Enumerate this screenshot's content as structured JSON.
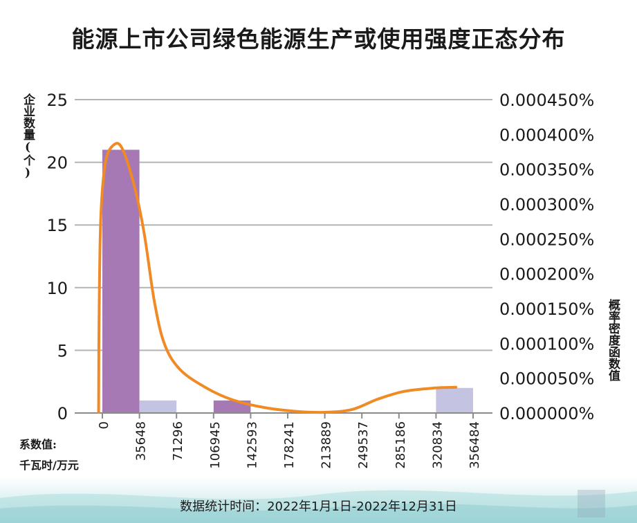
{
  "title": "能源上市公司绿色能源生产或使用强度正态分布",
  "y_left_label": "企业数量(个)",
  "y_right_label": "概率密度函数值",
  "x_unit_label_1": "系数值:",
  "x_unit_label_2": "千瓦时/万元",
  "footer_text": "数据统计时间：2022年1月1日-2022年12月31日",
  "colors": {
    "bar_main": "#a678b4",
    "bar_light": "#c5c3e2",
    "curve": "#f08a24",
    "grid": "#b3b3b3"
  },
  "chart_data": {
    "type": "bar",
    "title": "能源上市公司绿色能源生产或使用强度正态分布",
    "xlabel": "系数值:千瓦时/万元",
    "ylabel": "企业数量(个)",
    "y2label": "概率密度函数值",
    "x_ticks": [
      "0",
      "35648",
      "71296",
      "106945",
      "142593",
      "178241",
      "213889",
      "249537",
      "285186",
      "320834",
      "356484"
    ],
    "ylim": [
      0,
      25
    ],
    "y_ticks": [
      "0",
      "5",
      "10",
      "15",
      "20",
      "25"
    ],
    "y2lim": [
      0,
      0.0045
    ],
    "y2_ticks": [
      "0.000000%",
      "0.000050%",
      "0.000100%",
      "0.000150%",
      "0.000200%",
      "0.000250%",
      "0.000300%",
      "0.000350%",
      "0.000400%",
      "0.000450%"
    ],
    "bars": [
      {
        "bin": "0-35648",
        "value": 21,
        "shade": "main"
      },
      {
        "bin": "35648-71296",
        "value": 1,
        "shade": "light"
      },
      {
        "bin": "71296-106945",
        "value": 0,
        "shade": "main"
      },
      {
        "bin": "106945-142593",
        "value": 1,
        "shade": "main"
      },
      {
        "bin": "142593-178241",
        "value": 0,
        "shade": "light"
      },
      {
        "bin": "178241-213889",
        "value": 0,
        "shade": "main"
      },
      {
        "bin": "213889-249537",
        "value": 0,
        "shade": "light"
      },
      {
        "bin": "249537-285186",
        "value": 0,
        "shade": "main"
      },
      {
        "bin": "285186-320834",
        "value": 0,
        "shade": "light"
      },
      {
        "bin": "320834-356484",
        "value": 2,
        "shade": "light"
      }
    ],
    "density_curve": [
      {
        "x": -3565,
        "y": 1e-05
      },
      {
        "x": -3200,
        "y": 0.0013
      },
      {
        "x": -1500,
        "y": 0.0028
      },
      {
        "x": 3000,
        "y": 0.0036
      },
      {
        "x": 11000,
        "y": 0.00385
      },
      {
        "x": 19000,
        "y": 0.0038
      },
      {
        "x": 30000,
        "y": 0.0033
      },
      {
        "x": 40000,
        "y": 0.0026
      },
      {
        "x": 50000,
        "y": 0.0016
      },
      {
        "x": 60000,
        "y": 0.00098
      },
      {
        "x": 75000,
        "y": 0.00062
      },
      {
        "x": 100000,
        "y": 0.00036
      },
      {
        "x": 125000,
        "y": 0.00019
      },
      {
        "x": 155000,
        "y": 8e-05
      },
      {
        "x": 185000,
        "y": 2.5e-05
      },
      {
        "x": 213889,
        "y": 1e-05
      },
      {
        "x": 240000,
        "y": 5e-05
      },
      {
        "x": 265000,
        "y": 0.0002
      },
      {
        "x": 290000,
        "y": 0.00031
      },
      {
        "x": 320000,
        "y": 0.00036
      },
      {
        "x": 340000,
        "y": 0.00037
      }
    ]
  }
}
